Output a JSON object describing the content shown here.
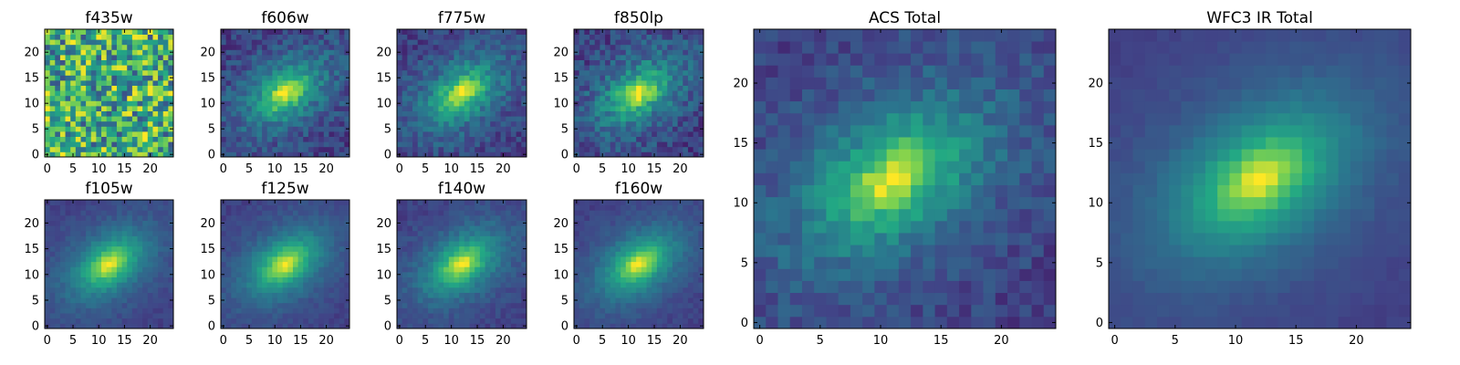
{
  "figure": {
    "colormap": "viridis",
    "colormap_stops": [
      "#440154",
      "#414487",
      "#2a788e",
      "#22a884",
      "#7ad151",
      "#fde725"
    ]
  },
  "chart_data": [
    {
      "type": "heatmap",
      "title": "f435w",
      "shape": [
        25,
        25
      ],
      "xlim": [
        0,
        24
      ],
      "ylim": [
        0,
        24
      ],
      "xticks": [
        0,
        5,
        10,
        15,
        20
      ],
      "yticks": [
        0,
        5,
        10,
        15,
        20
      ],
      "profile": "noise"
    },
    {
      "type": "heatmap",
      "title": "f606w",
      "shape": [
        25,
        25
      ],
      "xlim": [
        0,
        24
      ],
      "ylim": [
        0,
        24
      ],
      "xticks": [
        0,
        5,
        10,
        15,
        20
      ],
      "yticks": [
        0,
        5,
        10,
        15,
        20
      ],
      "profile": "galaxy",
      "peak": [
        12,
        12
      ],
      "noise_level": 0.22
    },
    {
      "type": "heatmap",
      "title": "f775w",
      "shape": [
        25,
        25
      ],
      "xlim": [
        0,
        24
      ],
      "ylim": [
        0,
        24
      ],
      "xticks": [
        0,
        5,
        10,
        15,
        20
      ],
      "yticks": [
        0,
        5,
        10,
        15,
        20
      ],
      "profile": "galaxy",
      "peak": [
        12,
        12
      ],
      "noise_level": 0.2
    },
    {
      "type": "heatmap",
      "title": "f850lp",
      "shape": [
        25,
        25
      ],
      "xlim": [
        0,
        24
      ],
      "ylim": [
        0,
        24
      ],
      "xticks": [
        0,
        5,
        10,
        15,
        20
      ],
      "yticks": [
        0,
        5,
        10,
        15,
        20
      ],
      "profile": "galaxy",
      "peak": [
        12,
        12
      ],
      "noise_level": 0.24
    },
    {
      "type": "heatmap",
      "title": "f105w",
      "shape": [
        25,
        25
      ],
      "xlim": [
        0,
        24
      ],
      "ylim": [
        0,
        24
      ],
      "xticks": [
        0,
        5,
        10,
        15,
        20
      ],
      "yticks": [
        0,
        5,
        10,
        15,
        20
      ],
      "profile": "galaxy",
      "peak": [
        12,
        12
      ],
      "noise_level": 0.08
    },
    {
      "type": "heatmap",
      "title": "f125w",
      "shape": [
        25,
        25
      ],
      "xlim": [
        0,
        24
      ],
      "ylim": [
        0,
        24
      ],
      "xticks": [
        0,
        5,
        10,
        15,
        20
      ],
      "yticks": [
        0,
        5,
        10,
        15,
        20
      ],
      "profile": "galaxy",
      "peak": [
        12,
        12
      ],
      "noise_level": 0.08
    },
    {
      "type": "heatmap",
      "title": "f140w",
      "shape": [
        25,
        25
      ],
      "xlim": [
        0,
        24
      ],
      "ylim": [
        0,
        24
      ],
      "xticks": [
        0,
        5,
        10,
        15,
        20
      ],
      "yticks": [
        0,
        5,
        10,
        15,
        20
      ],
      "profile": "galaxy",
      "peak": [
        12,
        12
      ],
      "noise_level": 0.1
    },
    {
      "type": "heatmap",
      "title": "f160w",
      "shape": [
        25,
        25
      ],
      "xlim": [
        0,
        24
      ],
      "ylim": [
        0,
        24
      ],
      "xticks": [
        0,
        5,
        10,
        15,
        20
      ],
      "yticks": [
        0,
        5,
        10,
        15,
        20
      ],
      "profile": "galaxy",
      "peak": [
        12,
        12
      ],
      "noise_level": 0.08
    },
    {
      "type": "heatmap",
      "title": "ACS Total",
      "shape": [
        25,
        25
      ],
      "xlim": [
        0,
        24
      ],
      "ylim": [
        0,
        24
      ],
      "xticks": [
        0,
        5,
        10,
        15,
        20
      ],
      "yticks": [
        0,
        5,
        10,
        15,
        20
      ],
      "profile": "galaxy",
      "peak": [
        11,
        12
      ],
      "noise_level": 0.16
    },
    {
      "type": "heatmap",
      "title": "WFC3 IR Total",
      "shape": [
        25,
        25
      ],
      "xlim": [
        0,
        24
      ],
      "ylim": [
        0,
        24
      ],
      "xticks": [
        0,
        5,
        10,
        15,
        20
      ],
      "yticks": [
        0,
        5,
        10,
        15,
        20
      ],
      "profile": "galaxy",
      "peak": [
        12,
        12
      ],
      "noise_level": 0.04
    }
  ]
}
